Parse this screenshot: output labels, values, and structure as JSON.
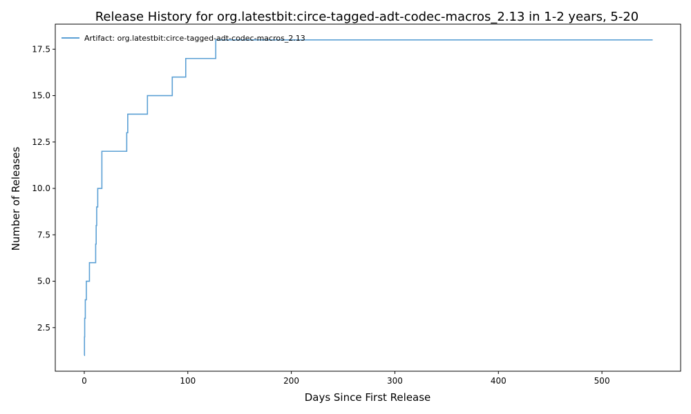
{
  "chart_data": {
    "type": "line",
    "title": "Release History for org.latestbit:circe-tagged-adt-codec-macros_2.13 in 1-2 years, 5-20",
    "xlabel": "Days Since First Release",
    "ylabel": "Number of Releases",
    "xlim": [
      -28,
      576
    ],
    "ylim": [
      0.15,
      18.85
    ],
    "x_ticks": [
      0,
      100,
      200,
      300,
      400,
      500
    ],
    "x_tick_labels": [
      "0",
      "100",
      "200",
      "300",
      "400",
      "500"
    ],
    "y_ticks": [
      2.5,
      5.0,
      7.5,
      10.0,
      12.5,
      15.0,
      17.5
    ],
    "y_tick_labels": [
      "2.5",
      "5.0",
      "7.5",
      "10.0",
      "12.5",
      "15.0",
      "17.5"
    ],
    "grid": false,
    "legend_position": "top-left",
    "step": "post",
    "series": [
      {
        "name": "Artifact: org.latestbit:circe-tagged-adt-codec-macros_2.13",
        "color": "#5a9fd4",
        "x": [
          0,
          0.2,
          0.4,
          1,
          2,
          5,
          11,
          11.5,
          12,
          13,
          17,
          41,
          41.5,
          42,
          61,
          85,
          98,
          127,
          549
        ],
        "y": [
          1,
          2,
          3,
          4,
          5,
          6,
          7,
          8,
          9,
          10,
          12,
          13,
          13,
          14,
          15,
          16,
          17,
          18,
          18
        ]
      }
    ]
  }
}
